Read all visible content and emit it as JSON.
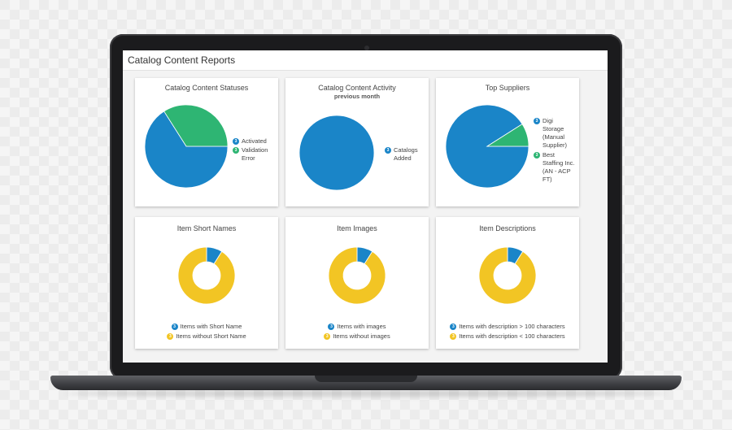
{
  "app": {
    "title": "Catalog Content Reports"
  },
  "colors": {
    "blue": "#1a85c8",
    "green": "#2eb573",
    "yellow": "#f2c524"
  },
  "panels": [
    {
      "title": "Catalog Content Statuses",
      "legend": [
        "Activated",
        "Validation Error"
      ],
      "chart_data": {
        "type": "pie",
        "slices": [
          {
            "label": "Activated",
            "value": 66
          },
          {
            "label": "Validation Error",
            "value": 34
          }
        ]
      }
    },
    {
      "title": "Catalog Content Activity",
      "subtitle": "previous month",
      "legend": [
        "Catalogs Added"
      ],
      "chart_data": {
        "type": "pie",
        "slices": [
          {
            "label": "Catalogs Added",
            "value": 100
          }
        ]
      }
    },
    {
      "title": "Top Suppliers",
      "legend": [
        "Digi Storage (Manual Supplier)",
        "Best Staffing Inc. (AN - ACP FT)"
      ],
      "chart_data": {
        "type": "pie",
        "slices": [
          {
            "label": "Digi Storage (Manual Supplier)",
            "value": 91
          },
          {
            "label": "Best Staffing Inc. (AN - ACP FT)",
            "value": 9
          }
        ]
      }
    },
    {
      "title": "Item Short Names",
      "legend": [
        "Items with Short Name",
        "Items without Short Name"
      ],
      "chart_data": {
        "type": "donut",
        "slices": [
          {
            "label": "Items with Short Name",
            "value": 9
          },
          {
            "label": "Items without Short Name",
            "value": 91
          }
        ]
      }
    },
    {
      "title": "Item Images",
      "legend": [
        "Items with images",
        "Items without images"
      ],
      "chart_data": {
        "type": "donut",
        "slices": [
          {
            "label": "Items with images",
            "value": 9
          },
          {
            "label": "Items without images",
            "value": 91
          }
        ]
      }
    },
    {
      "title": "Item Descriptions",
      "legend": [
        "Items with description > 100 characters",
        "Items with description < 100 characters"
      ],
      "chart_data": {
        "type": "donut",
        "slices": [
          {
            "label": "Items with description > 100 characters",
            "value": 9
          },
          {
            "label": "Items with description < 100 characters",
            "value": 91
          }
        ]
      }
    }
  ]
}
